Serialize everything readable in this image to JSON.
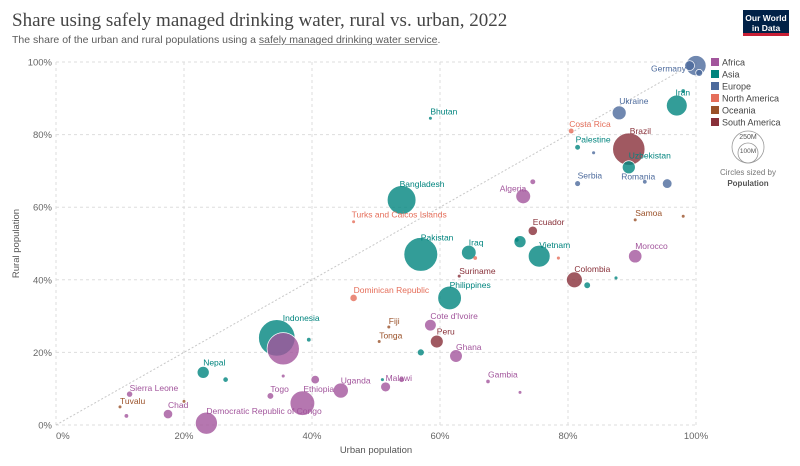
{
  "header": {
    "title": "Share using safely managed drinking water, rural vs. urban, 2022",
    "subtitle_prefix": "The share of the urban and rural populations using a ",
    "subtitle_link": "safely managed drinking water service",
    "subtitle_suffix": ".",
    "logo_line1": "Our World",
    "logo_line2": "in Data"
  },
  "chart_data": {
    "type": "scatter",
    "xlabel": "Urban population",
    "ylabel": "Rural population",
    "xlim": [
      0,
      100
    ],
    "ylim": [
      0,
      100
    ],
    "x_ticks": [
      "0%",
      "20%",
      "40%",
      "60%",
      "80%",
      "100%"
    ],
    "y_ticks": [
      "0%",
      "20%",
      "40%",
      "60%",
      "80%",
      "100%"
    ],
    "grid": true,
    "legend_position": "right",
    "continents": [
      {
        "name": "Africa",
        "color": "#a2559c"
      },
      {
        "name": "Asia",
        "color": "#00847e"
      },
      {
        "name": "Europe",
        "color": "#4c6a9c"
      },
      {
        "name": "North America",
        "color": "#e56e5a"
      },
      {
        "name": "Oceania",
        "color": "#9a5129"
      },
      {
        "name": "South America",
        "color": "#883039"
      }
    ],
    "size_legend": {
      "large": "250M",
      "small": "100M",
      "caption_line1": "Circles sized by",
      "caption_line2": "Population"
    },
    "points": [
      {
        "label": "Germany",
        "continent": "Europe",
        "x": 100,
        "y": 99,
        "pop": 84
      },
      {
        "label": "",
        "continent": "Europe",
        "x": 99,
        "y": 99,
        "pop": 20
      },
      {
        "label": "",
        "continent": "Europe",
        "x": 100.5,
        "y": 97,
        "pop": 10
      },
      {
        "label": "Iran",
        "continent": "Asia",
        "x": 97,
        "y": 88,
        "pop": 89
      },
      {
        "label": "",
        "continent": "Asia",
        "x": 98,
        "y": 92,
        "pop": 3
      },
      {
        "label": "Ukraine",
        "continent": "Europe",
        "x": 88,
        "y": 86,
        "pop": 40
      },
      {
        "label": "Bhutan",
        "continent": "Asia",
        "x": 58.5,
        "y": 84.5,
        "pop": 1
      },
      {
        "label": "Costa Rica",
        "continent": "North America",
        "x": 80.5,
        "y": 81,
        "pop": 5
      },
      {
        "label": "Brazil",
        "continent": "South America",
        "x": 89.5,
        "y": 76,
        "pop": 215
      },
      {
        "label": "Palestine",
        "continent": "Asia",
        "x": 81.5,
        "y": 76.5,
        "pop": 5
      },
      {
        "label": "",
        "continent": "Europe",
        "x": 84,
        "y": 75,
        "pop": 2
      },
      {
        "label": "Uzbekistan",
        "continent": "Asia",
        "x": 89.5,
        "y": 71,
        "pop": 35
      },
      {
        "label": "Serbia",
        "continent": "Europe",
        "x": 81.5,
        "y": 66.5,
        "pop": 7
      },
      {
        "label": "Romania",
        "continent": "Europe",
        "x": 95.5,
        "y": 66.5,
        "pop": 19
      },
      {
        "label": "",
        "continent": "Europe",
        "x": 92,
        "y": 67,
        "pop": 3
      },
      {
        "label": "Algeria",
        "continent": "Africa",
        "x": 73,
        "y": 63,
        "pop": 45
      },
      {
        "label": "",
        "continent": "Africa",
        "x": 74.5,
        "y": 67,
        "pop": 5
      },
      {
        "label": "Bangladesh",
        "continent": "Asia",
        "x": 54,
        "y": 62,
        "pop": 170
      },
      {
        "label": "Turks and Caicos Islands",
        "continent": "North America",
        "x": 46.5,
        "y": 56,
        "pop": 0.04
      },
      {
        "label": "Samoa",
        "continent": "Oceania",
        "x": 90.5,
        "y": 56.5,
        "pop": 0.2
      },
      {
        "label": "",
        "continent": "Oceania",
        "x": 98,
        "y": 57.5,
        "pop": 1
      },
      {
        "label": "Ecuador",
        "continent": "South America",
        "x": 74.5,
        "y": 53.5,
        "pop": 18
      },
      {
        "label": "Pakistan",
        "continent": "Asia",
        "x": 57,
        "y": 47,
        "pop": 235
      },
      {
        "label": "Iraq",
        "continent": "Asia",
        "x": 64.5,
        "y": 47.5,
        "pop": 44
      },
      {
        "label": "",
        "continent": "North America",
        "x": 65.5,
        "y": 46,
        "pop": 3
      },
      {
        "label": "Vietnam",
        "continent": "Asia",
        "x": 75.5,
        "y": 46.5,
        "pop": 98
      },
      {
        "label": "",
        "continent": "Asia",
        "x": 72.5,
        "y": 50.5,
        "pop": 30
      },
      {
        "label": "",
        "continent": "Asia",
        "x": 72,
        "y": 51,
        "pop": 3
      },
      {
        "label": "",
        "continent": "North America",
        "x": 78.5,
        "y": 46,
        "pop": 2
      },
      {
        "label": "Morocco",
        "continent": "Africa",
        "x": 90.5,
        "y": 46.5,
        "pop": 37
      },
      {
        "label": "Suriname",
        "continent": "South America",
        "x": 63,
        "y": 41,
        "pop": 0.6
      },
      {
        "label": "Colombia",
        "continent": "South America",
        "x": 81,
        "y": 40,
        "pop": 52
      },
      {
        "label": "",
        "continent": "Asia",
        "x": 83,
        "y": 38.5,
        "pop": 9
      },
      {
        "label": "",
        "continent": "Asia",
        "x": 87.5,
        "y": 40.5,
        "pop": 2
      },
      {
        "label": "Dominican Republic",
        "continent": "North America",
        "x": 46.5,
        "y": 35,
        "pop": 11
      },
      {
        "label": "Philippines",
        "continent": "Asia",
        "x": 61.5,
        "y": 35,
        "pop": 115
      },
      {
        "label": "Indonesia",
        "continent": "Asia",
        "x": 34.5,
        "y": 24,
        "pop": 275
      },
      {
        "label": "",
        "continent": "Africa",
        "x": 35.5,
        "y": 21,
        "pop": 215
      },
      {
        "label": "",
        "continent": "Asia",
        "x": 39.5,
        "y": 23.5,
        "pop": 3
      },
      {
        "label": "Fiji",
        "continent": "Oceania",
        "x": 52,
        "y": 27,
        "pop": 1
      },
      {
        "label": "Tonga",
        "continent": "Oceania",
        "x": 50.5,
        "y": 23,
        "pop": 0.1
      },
      {
        "label": "Cote d'Ivoire",
        "continent": "Africa",
        "x": 58.5,
        "y": 27.5,
        "pop": 28
      },
      {
        "label": "Peru",
        "continent": "South America",
        "x": 59.5,
        "y": 23,
        "pop": 34
      },
      {
        "label": "",
        "continent": "Asia",
        "x": 57,
        "y": 20,
        "pop": 10
      },
      {
        "label": "Ghana",
        "continent": "Africa",
        "x": 62.5,
        "y": 19,
        "pop": 33
      },
      {
        "label": "Nepal",
        "continent": "Asia",
        "x": 23,
        "y": 14.5,
        "pop": 30
      },
      {
        "label": "",
        "continent": "Asia",
        "x": 26.5,
        "y": 12.5,
        "pop": 6
      },
      {
        "label": "Sierra Leone",
        "continent": "Africa",
        "x": 11.5,
        "y": 8.5,
        "pop": 8
      },
      {
        "label": "Tuvalu",
        "continent": "Oceania",
        "x": 10,
        "y": 5,
        "pop": 0.01
      },
      {
        "label": "",
        "continent": "Oceania",
        "x": 20,
        "y": 6.5,
        "pop": 0.5
      },
      {
        "label": "Chad",
        "continent": "Africa",
        "x": 17.5,
        "y": 3,
        "pop": 18
      },
      {
        "label": "",
        "continent": "Africa",
        "x": 11,
        "y": 2.5,
        "pop": 3
      },
      {
        "label": "Togo",
        "continent": "Africa",
        "x": 33.5,
        "y": 8,
        "pop": 9
      },
      {
        "label": "Ethiopia",
        "continent": "Africa",
        "x": 38.5,
        "y": 6,
        "pop": 125
      },
      {
        "label": "Democratic Republic of Congo",
        "continent": "Africa",
        "x": 23.5,
        "y": 0.5,
        "pop": 100
      },
      {
        "label": "Uganda",
        "continent": "Africa",
        "x": 44.5,
        "y": 9.5,
        "pop": 47
      },
      {
        "label": "",
        "continent": "Africa",
        "x": 40.5,
        "y": 12.5,
        "pop": 15
      },
      {
        "label": "",
        "continent": "Africa",
        "x": 35.5,
        "y": 13.5,
        "pop": 2
      },
      {
        "label": "Malawi",
        "continent": "Africa",
        "x": 51.5,
        "y": 10.5,
        "pop": 20
      },
      {
        "label": "",
        "continent": "Africa",
        "x": 54,
        "y": 12.5,
        "pop": 5
      },
      {
        "label": "",
        "continent": "Asia",
        "x": 51,
        "y": 12.5,
        "pop": 2
      },
      {
        "label": "Gambia",
        "continent": "Africa",
        "x": 67.5,
        "y": 12,
        "pop": 2.7
      },
      {
        "label": "",
        "continent": "Africa",
        "x": 72.5,
        "y": 9,
        "pop": 1
      }
    ]
  }
}
